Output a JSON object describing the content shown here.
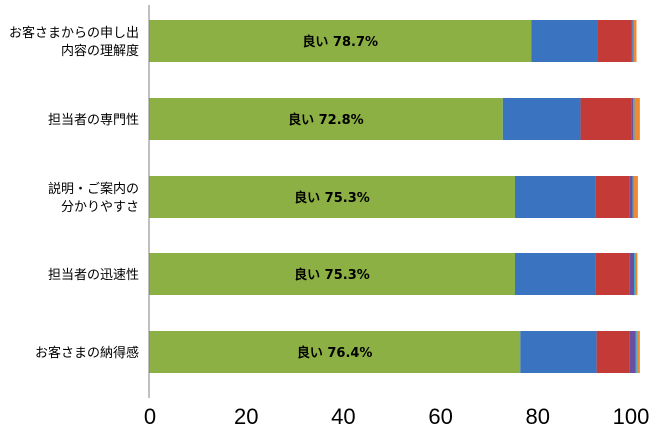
{
  "chart_data": {
    "type": "bar",
    "orientation": "horizontal",
    "stacked": true,
    "categories": [
      [
        "お客さまからの申し出",
        "内容の理解度"
      ],
      [
        "担当者の専門性"
      ],
      [
        "説明・ご案内の",
        "分かりやすさ"
      ],
      [
        "担当者の迅速性"
      ],
      [
        "お客さまの納得感"
      ]
    ],
    "segments": [
      {
        "values": [
          78.7,
          72.8,
          75.3,
          75.3,
          76.4
        ],
        "color": "#8cb043"
      },
      {
        "values": [
          13.5,
          16.0,
          16.5,
          16.5,
          15.7
        ],
        "color": "#3a74c0"
      },
      {
        "values": [
          7.0,
          10.5,
          7.0,
          7.0,
          6.8
        ],
        "color": "#c33a36"
      },
      {
        "values": [
          0.3,
          0.3,
          0.7,
          1.0,
          1.2
        ],
        "color": "#6a4fa0"
      },
      {
        "values": [
          0.3,
          0.3,
          0.3,
          0.3,
          0.3
        ],
        "color": "#3fa9c9"
      },
      {
        "values": [
          0.5,
          1.1,
          0.8,
          0.4,
          0.6
        ],
        "color": "#f08a30"
      }
    ],
    "data_labels": [
      "良い 78.7%",
      "良い 72.8%",
      "良い 75.3%",
      "良い 75.3%",
      "良い 76.4%"
    ],
    "xlim": [
      0,
      100
    ],
    "xticks": [
      0,
      20,
      40,
      60,
      80,
      100
    ],
    "grid": false
  }
}
